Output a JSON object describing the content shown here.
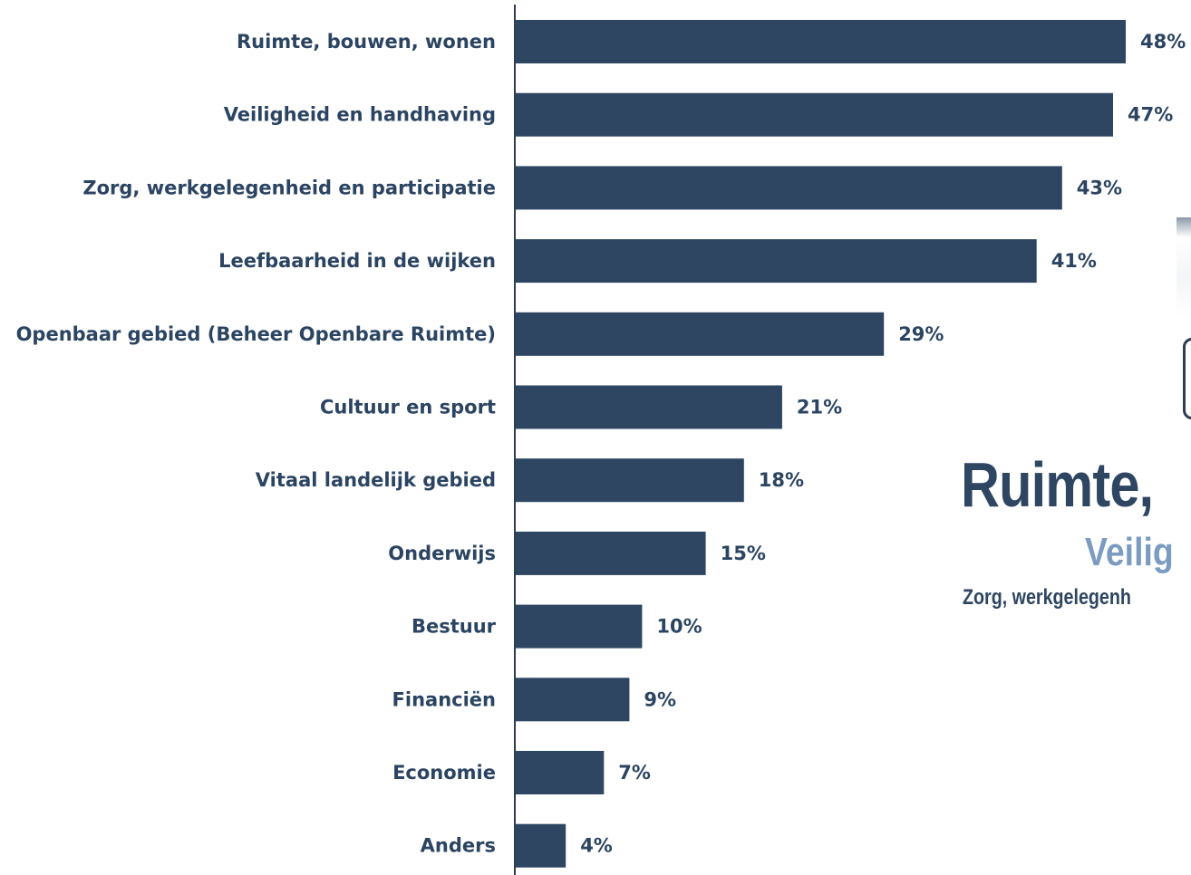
{
  "chart_data": {
    "type": "bar",
    "orientation": "horizontal",
    "categories": [
      "Ruimte, bouwen, wonen",
      "Veiligheid en handhaving",
      "Zorg, werkgelegenheid en participatie",
      "Leefbaarheid in de wijken",
      "Openbaar gebied (Beheer Openbare Ruimte)",
      "Cultuur en sport",
      "Vitaal landelijk gebied",
      "Onderwijs",
      "Bestuur",
      "Financiën",
      "Economie",
      "Anders"
    ],
    "values": [
      48,
      47,
      43,
      41,
      29,
      21,
      18,
      15,
      10,
      9,
      7,
      4
    ],
    "value_labels": [
      "48%",
      "47%",
      "43%",
      "41%",
      "29%",
      "21%",
      "18%",
      "15%",
      "10%",
      "9%",
      "7%",
      "4%"
    ],
    "unit": "%",
    "xlim": [
      0,
      48
    ],
    "grid": false,
    "bar_color": "#2e4662",
    "text_color": "#2b4462"
  },
  "wordcloud": {
    "words": [
      "Ruimte,",
      "Veilig",
      "Zorg, werkgelegenh"
    ],
    "colors": [
      "#2e4662",
      "#7b9cc0",
      "#2e4662"
    ]
  }
}
